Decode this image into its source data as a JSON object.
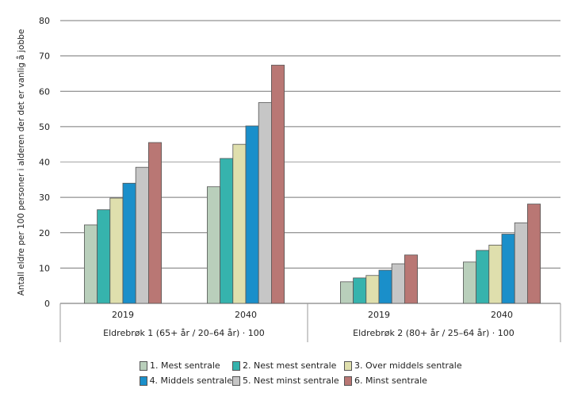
{
  "chart_data": {
    "type": "bar",
    "title": "",
    "ylabel": "Antall eldre per 100 personer i alderen der det er vanlig å jobbe",
    "xlabel": "",
    "ylim": [
      0,
      80
    ],
    "yticks": [
      0,
      10,
      20,
      30,
      40,
      50,
      60,
      70,
      80
    ],
    "grid": true,
    "legend_position": "bottom",
    "groups": [
      {
        "label": "Eldrebrøk 1 (65+ år / 20–64 år) · 100",
        "categories": [
          "2019",
          "2040"
        ]
      },
      {
        "label": "Eldrebrøk 2 (80+ år / 25–64 år) · 100",
        "categories": [
          "2019",
          "2040"
        ]
      }
    ],
    "series": [
      {
        "name": "1. Mest sentrale",
        "color": "#b9cfbb",
        "values": [
          22.2,
          33.0,
          6.1,
          11.7
        ]
      },
      {
        "name": "2. Nest mest sentrale",
        "color": "#36b3ad",
        "values": [
          26.5,
          41.0,
          7.2,
          15.0
        ]
      },
      {
        "name": "3. Over middels sentrale",
        "color": "#dfdfad",
        "values": [
          29.8,
          45.0,
          7.9,
          16.5
        ]
      },
      {
        "name": "4. Middels sentrale",
        "color": "#1a8fca",
        "values": [
          34.0,
          50.2,
          9.4,
          19.6
        ]
      },
      {
        "name": "5. Nest minst sentrale",
        "color": "#c6c6c6",
        "values": [
          38.5,
          56.8,
          11.2,
          22.8
        ]
      },
      {
        "name": "6. Minst sentrale",
        "color": "#b97774",
        "values": [
          45.5,
          67.4,
          13.7,
          28.1
        ]
      }
    ]
  }
}
